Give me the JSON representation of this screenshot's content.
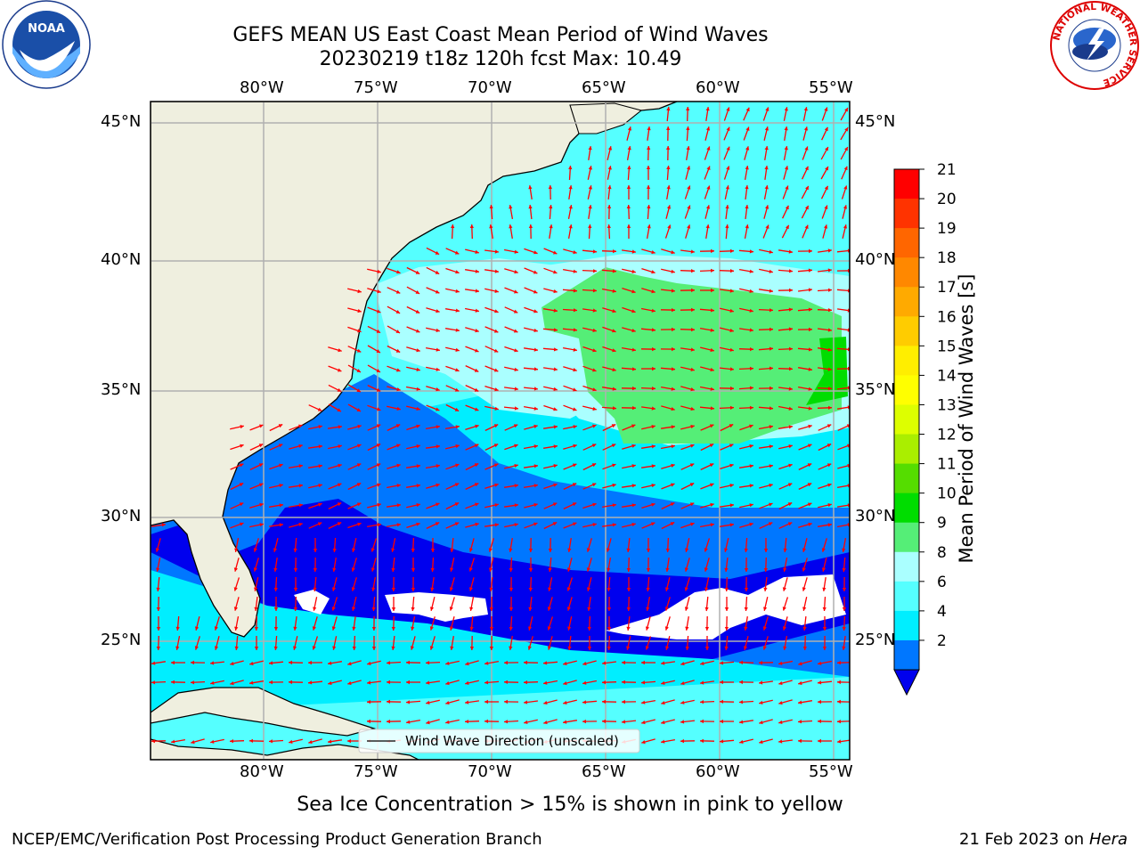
{
  "header": {
    "title_line1": "GEFS MEAN US East Coast Mean Period of Wind Waves",
    "title_line2": "20230219 t18z 120h fcst   Max: 10.49"
  },
  "logos": {
    "left": {
      "name": "noaa-logo",
      "text": "NOAA"
    },
    "right": {
      "name": "nws-logo",
      "ring_text": "NATIONAL WEATHER SERVICE"
    }
  },
  "map": {
    "lon_labels": [
      "80°W",
      "75°W",
      "70°W",
      "65°W",
      "60°W",
      "55°W"
    ],
    "lat_labels": [
      "45°N",
      "40°N",
      "35°N",
      "30°N",
      "25°N"
    ],
    "legend_label": "Wind Wave Direction (unscaled)",
    "land_color": "#efefdf",
    "arrow_color": "#ff0000"
  },
  "colorbar": {
    "label": "Mean Period of Wind Waves [s]",
    "ticks": [
      "21",
      "20",
      "19",
      "18",
      "17",
      "16",
      "15",
      "14",
      "13",
      "12",
      "11",
      "10",
      "9",
      "8",
      "6",
      "4",
      "2"
    ],
    "colors": [
      "#ff0000",
      "#ff3300",
      "#ff6600",
      "#ff8800",
      "#ffaa00",
      "#ffcc00",
      "#ffee00",
      "#ffff00",
      "#ddff00",
      "#aaee00",
      "#55dd00",
      "#00dd00",
      "#55ee77",
      "#aaffff",
      "#55ffff",
      "#00eeff",
      "#0077ff"
    ],
    "extend_color": "#0000ee"
  },
  "note": "Sea Ice Concentration > 15% is shown in pink to yellow",
  "footer": {
    "left": "NCEP/EMC/Verification Post Processing Product Generation Branch",
    "date": "21 Feb 2023 on",
    "machine": "Hera"
  }
}
